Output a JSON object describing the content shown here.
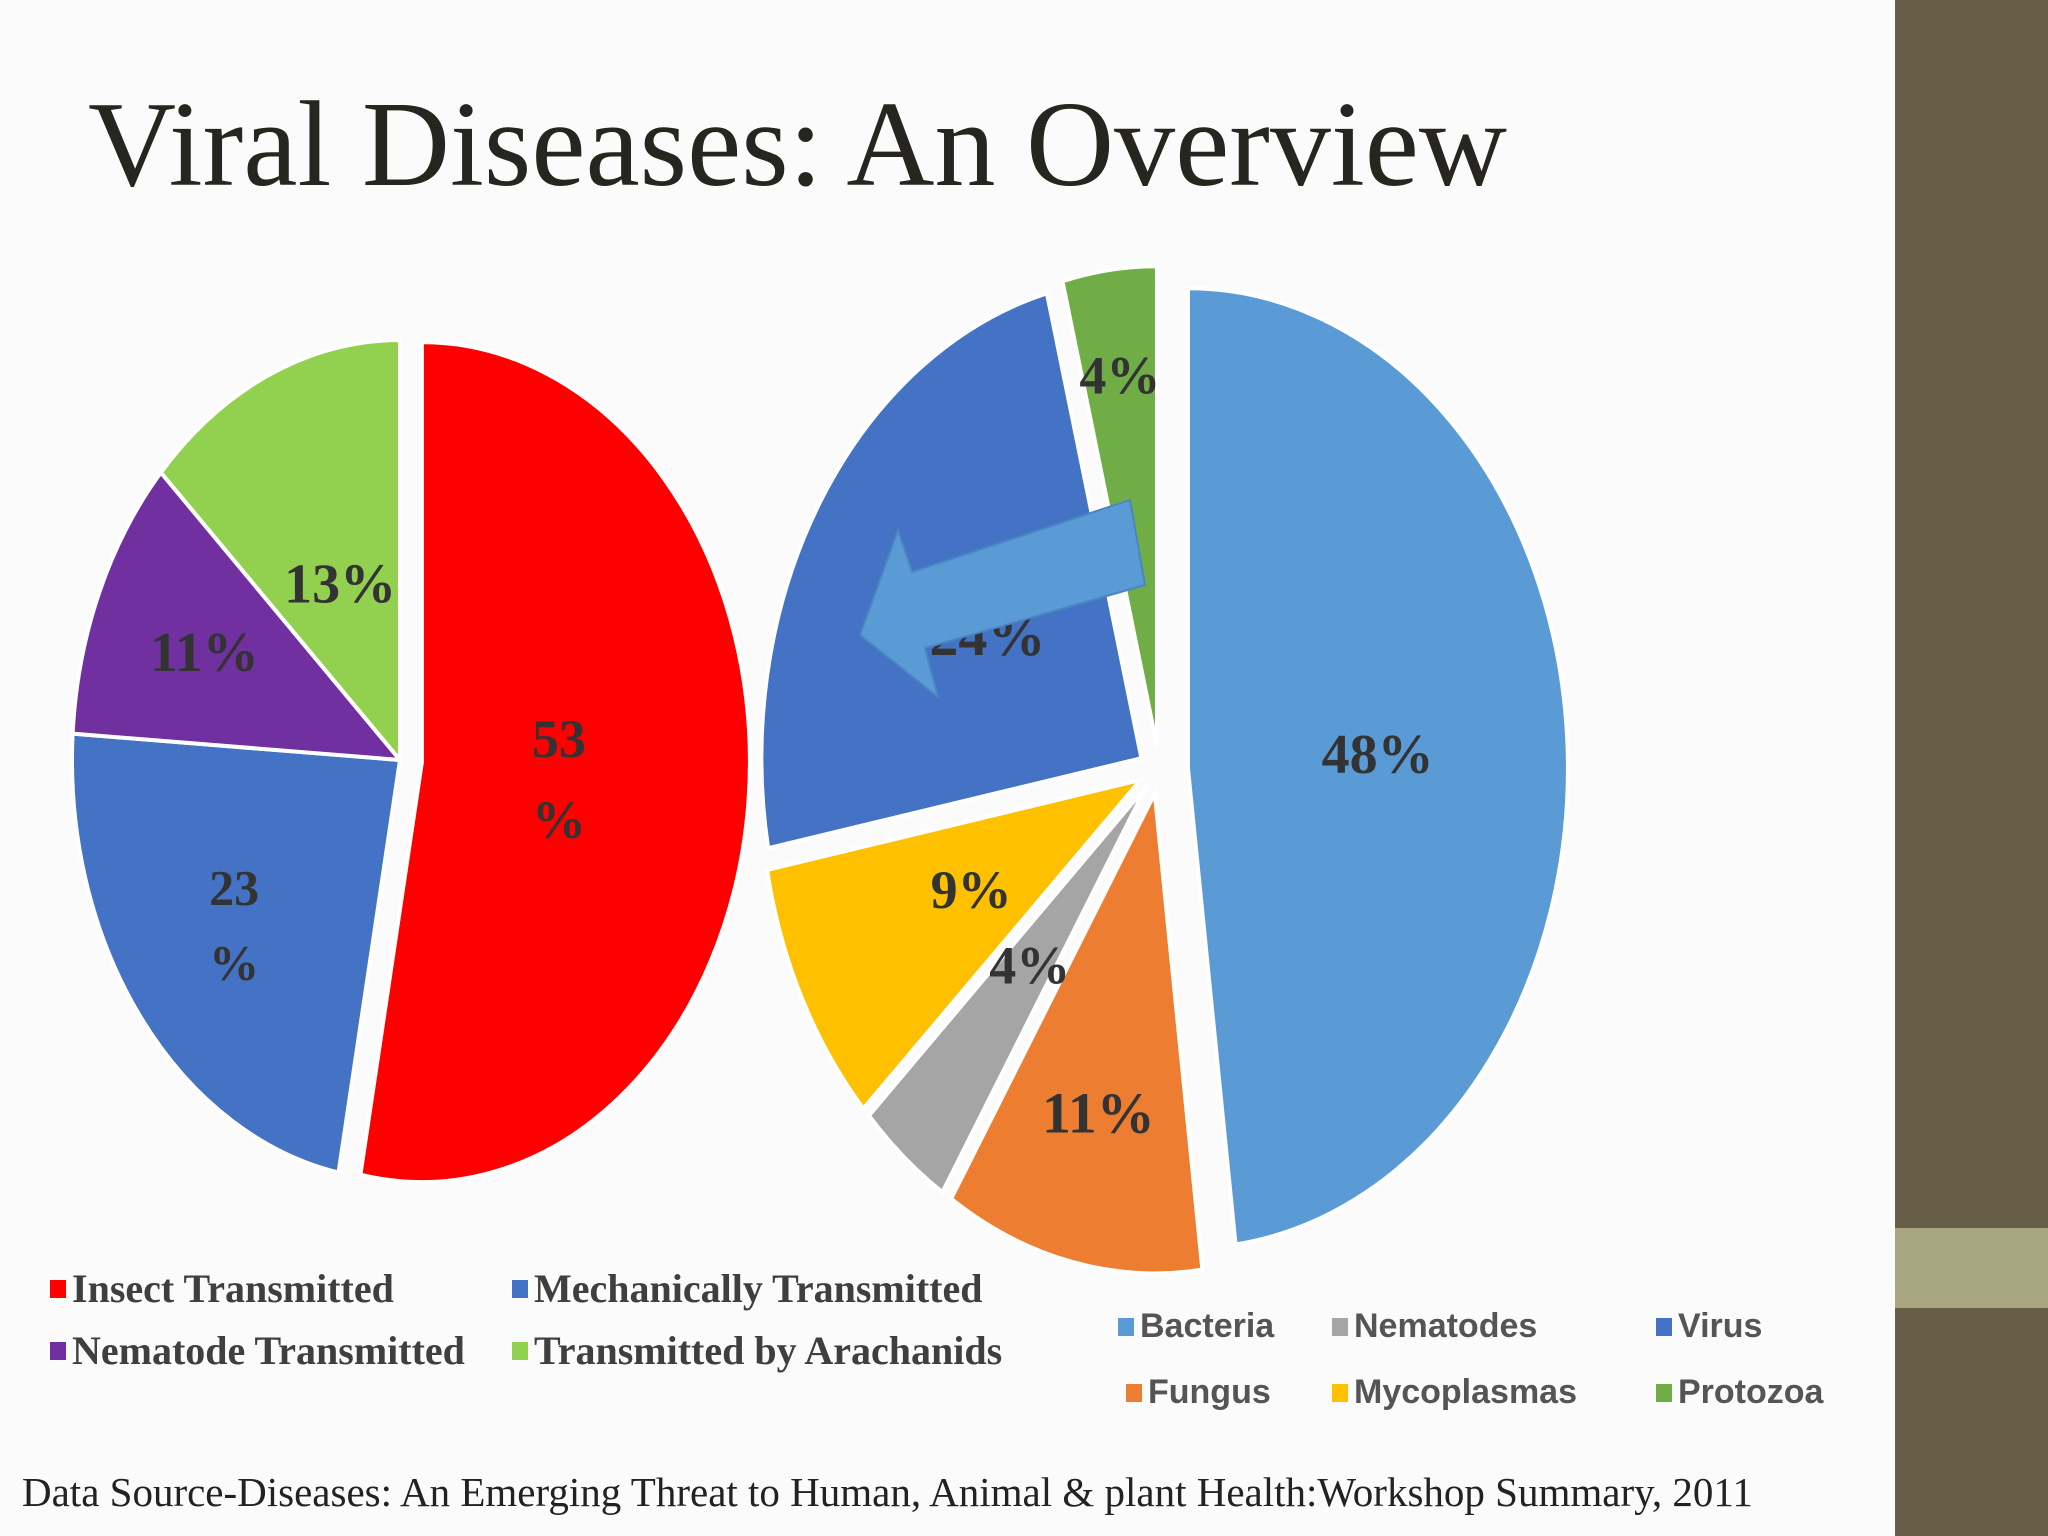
{
  "title": "Viral Diseases: An Overview",
  "source": "Data Source-Diseases: An Emerging Threat to Human, Animal & plant Health:Workshop Summary, 2011",
  "chart_data": [
    {
      "type": "pie",
      "title": "",
      "slices": [
        {
          "name": "Insect Transmitted",
          "value": 53,
          "label_lines": [
            "53",
            "%"
          ],
          "color": "#ff0000"
        },
        {
          "name": "Mechanically Transmitted",
          "value": 23,
          "label_lines": [
            "23",
            "%"
          ],
          "color": "#4472c4"
        },
        {
          "name": "Nematode Transmitted",
          "value": 11,
          "label_lines": [
            "11%"
          ],
          "color": "#7030a0"
        },
        {
          "name": "Transmitted by Arachanids",
          "value": 13,
          "label_lines": [
            "13%"
          ],
          "color": "#92d050"
        }
      ],
      "legend": "bottom"
    },
    {
      "type": "pie",
      "title": "",
      "slices": [
        {
          "name": "Bacteria",
          "value": 48,
          "label_lines": [
            "48%"
          ],
          "color": "#5b9bd5"
        },
        {
          "name": "Fungus",
          "value": 11,
          "label_lines": [
            "11%"
          ],
          "color": "#ed7d31"
        },
        {
          "name": "Nematodes",
          "value": 4,
          "label_lines": [
            "4%"
          ],
          "color": "#a5a5a5"
        },
        {
          "name": "Mycoplasmas",
          "value": 9,
          "label_lines": [
            "9%"
          ],
          "color": "#ffc000"
        },
        {
          "name": "Virus",
          "value": 24,
          "label_lines": [
            "24%"
          ],
          "color": "#4472c4"
        },
        {
          "name": "Protozoa",
          "value": 4,
          "label_lines": [
            "4%"
          ],
          "color": "#70ad47"
        }
      ],
      "legend": "bottom"
    }
  ],
  "arrow": {
    "color": "#5b9bd5",
    "direction": "left",
    "from": "Virus"
  }
}
